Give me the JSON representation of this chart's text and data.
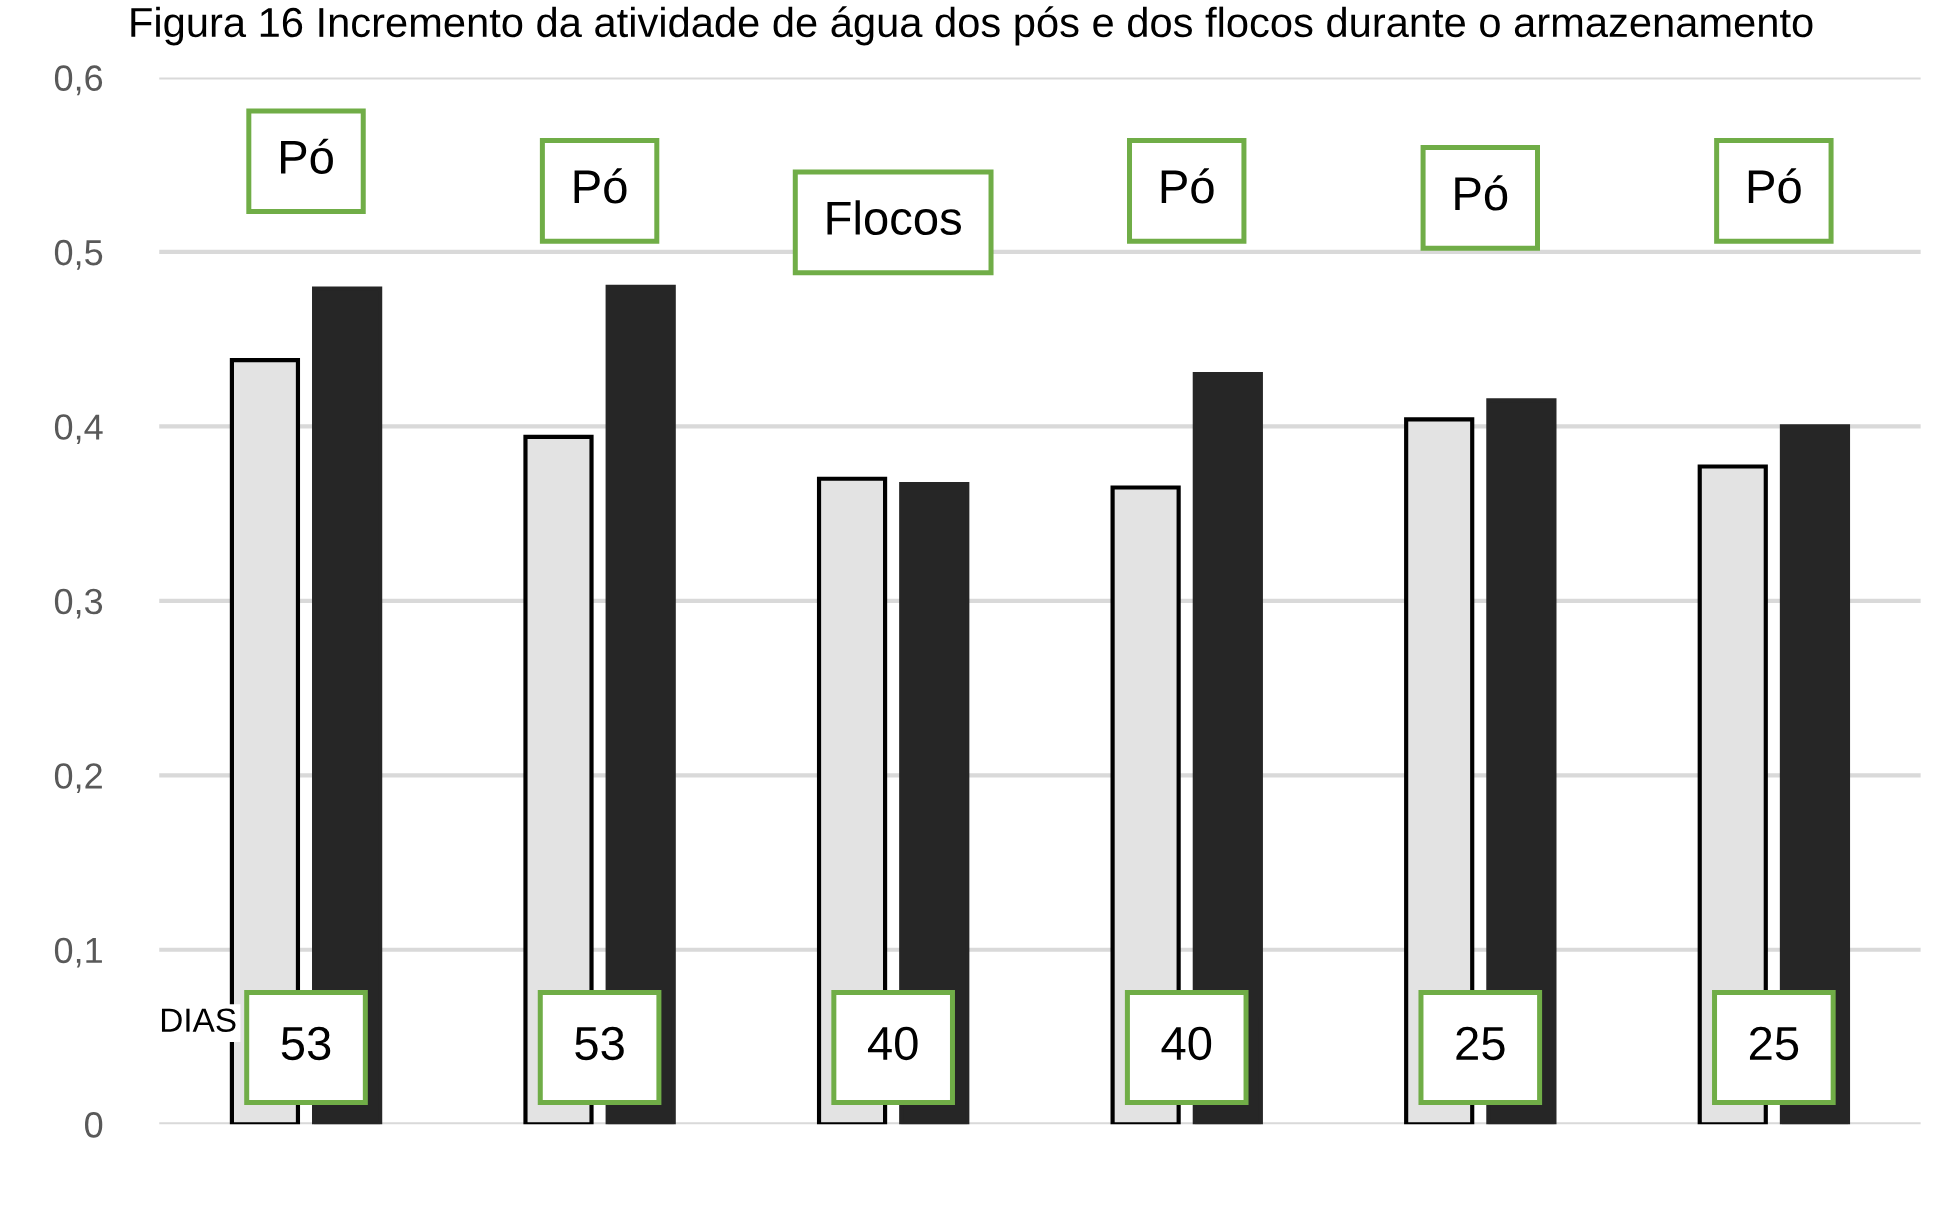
{
  "chart_data": {
    "type": "bar",
    "title": "Figura 16 Incremento da atividade de água dos pós e dos flocos durante o armazenamento",
    "categories": [
      null,
      null,
      null,
      null,
      null,
      null
    ],
    "series": [
      {
        "color": "#e3e3e3",
        "values": [
          0.438,
          0.394,
          0.37,
          0.365,
          0.404,
          0.377
        ]
      },
      {
        "color": "#262626",
        "values": [
          0.479,
          0.48,
          0.367,
          0.43,
          0.415,
          0.4
        ]
      }
    ],
    "ylim": [
      0,
      0.6
    ],
    "yticks": [
      0,
      {
        "value": 0.1,
        "label": "0,1"
      },
      {
        "value": 0.2,
        "label": "0,2"
      },
      {
        "value": 0.3,
        "label": "0,3"
      },
      {
        "value": 0.4,
        "label": "0,4"
      },
      {
        "value": 0.5,
        "label": "0,5"
      },
      {
        "value": 0.6,
        "label": "0,6"
      }
    ],
    "grid": "y",
    "annotations": [
      "Pó",
      "Pó",
      "Flocos",
      "Pó",
      "Pó",
      "Pó",
      "53",
      "53",
      "40",
      "40",
      "25",
      "25",
      "DIAS"
    ]
  }
}
